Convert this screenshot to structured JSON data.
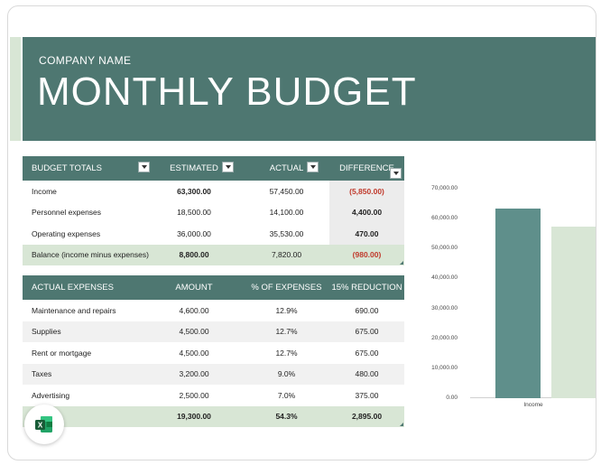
{
  "header": {
    "company": "COMPANY NAME",
    "title": "MONTHLY BUDGET"
  },
  "budget_totals": {
    "columns": [
      "BUDGET TOTALS",
      "ESTIMATED",
      "ACTUAL",
      "DIFFERENCE"
    ],
    "rows": [
      {
        "label": "Income",
        "estimated": "63,300.00",
        "actual": "57,450.00",
        "difference": "(5,850.00)",
        "negative": true
      },
      {
        "label": "Personnel expenses",
        "estimated": "18,500.00",
        "actual": "14,100.00",
        "difference": "4,400.00",
        "negative": false
      },
      {
        "label": "Operating expenses",
        "estimated": "36,000.00",
        "actual": "35,530.00",
        "difference": "470.00",
        "negative": false
      }
    ],
    "total": {
      "label": "Balance (income minus expenses)",
      "estimated": "8,800.00",
      "actual": "7,820.00",
      "difference": "(980.00)"
    }
  },
  "actual_expenses": {
    "columns": [
      "ACTUAL EXPENSES",
      "AMOUNT",
      "% OF EXPENSES",
      "15% REDUCTION"
    ],
    "rows": [
      {
        "label": "Maintenance and repairs",
        "amount": "4,600.00",
        "pct": "12.9%",
        "reduction": "690.00"
      },
      {
        "label": "Supplies",
        "amount": "4,500.00",
        "pct": "12.7%",
        "reduction": "675.00"
      },
      {
        "label": "Rent or mortgage",
        "amount": "4,500.00",
        "pct": "12.7%",
        "reduction": "675.00"
      },
      {
        "label": "Taxes",
        "amount": "3,200.00",
        "pct": "9.0%",
        "reduction": "480.00"
      },
      {
        "label": "Advertising",
        "amount": "2,500.00",
        "pct": "7.0%",
        "reduction": "375.00"
      }
    ],
    "total": {
      "label": "",
      "amount": "19,300.00",
      "pct": "54.3%",
      "reduction": "2,895.00"
    }
  },
  "chart_data": {
    "type": "bar",
    "categories": [
      "Income"
    ],
    "series": [
      {
        "values": [
          63300
        ],
        "color": "#5f8f8b"
      },
      {
        "values": [
          57450
        ],
        "color": "#d8e6d5"
      }
    ],
    "ylim": [
      0,
      70000
    ],
    "yticks": [
      "0.00",
      "10,000.00",
      "20,000.00",
      "30,000.00",
      "40,000.00",
      "50,000.00",
      "60,000.00",
      "70,000.00"
    ],
    "grid": false
  },
  "colors": {
    "header_bg": "#4e7771",
    "total_row_bg": "#d8e6d5",
    "negative_text": "#c0392b",
    "excel_green": "#1d6f42"
  },
  "icons": {
    "app": "excel-icon",
    "filter": "filter-dropdown-icon"
  }
}
